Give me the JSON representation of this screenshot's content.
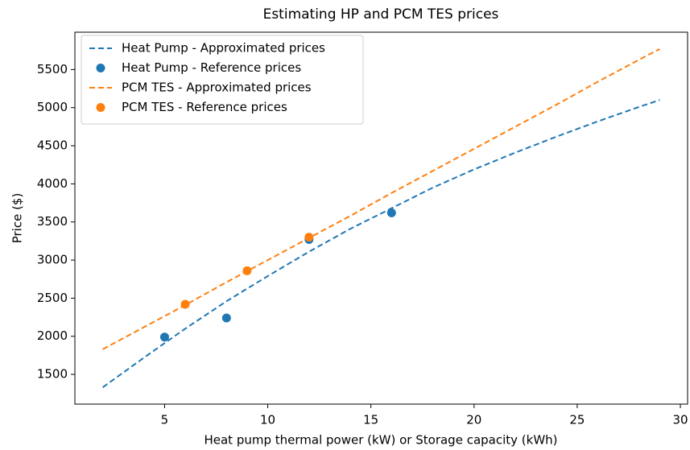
{
  "chart_data": {
    "type": "line",
    "title": "Estimating HP and PCM TES prices",
    "x_label": "Heat pump thermal power (kW) or Storage capacity (kWh)",
    "y_label": "Price ($)",
    "xlim": [
      0.65,
      30.35
    ],
    "ylim": [
      1110,
      5990
    ],
    "xticks": [
      5,
      10,
      15,
      20,
      25,
      30
    ],
    "yticks": [
      1500,
      2000,
      2500,
      3000,
      3500,
      4000,
      4500,
      5000,
      5500
    ],
    "legend": "upper left",
    "series": [
      {
        "name": "Heat Pump - Approximated prices",
        "type": "line",
        "color": "#1f77b4",
        "x": [
          2,
          4,
          6,
          8,
          10,
          12,
          14,
          16,
          18,
          20,
          22,
          24,
          26,
          28,
          29
        ],
        "values": [
          1330,
          1720,
          2100,
          2460,
          2790,
          3110,
          3410,
          3680,
          3950,
          4190,
          4410,
          4620,
          4820,
          5010,
          5100
        ]
      },
      {
        "name": "Heat Pump - Reference prices",
        "type": "scatter",
        "color": "#1f77b4",
        "x": [
          5,
          8,
          12,
          16
        ],
        "values": [
          1990,
          2240,
          3270,
          3620
        ]
      },
      {
        "name": "PCM TES - Approximated prices",
        "type": "line",
        "color": "#ff7f0e",
        "x": [
          2,
          4,
          6,
          8,
          10,
          12,
          14,
          16,
          18,
          20,
          22,
          24,
          26,
          28,
          29
        ],
        "values": [
          1830,
          2120,
          2410,
          2710,
          3000,
          3290,
          3580,
          3880,
          4170,
          4460,
          4750,
          5040,
          5340,
          5630,
          5770
        ]
      },
      {
        "name": "PCM TES - Reference prices",
        "type": "scatter",
        "color": "#ff7f0e",
        "x": [
          6,
          9,
          12
        ],
        "values": [
          2420,
          2860,
          3300
        ]
      }
    ]
  }
}
